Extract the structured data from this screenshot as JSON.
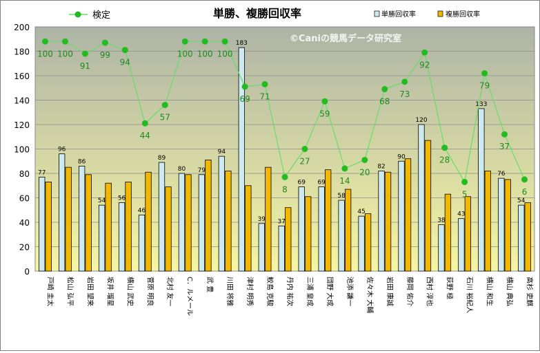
{
  "chart_data": {
    "type": "bar",
    "title": "単勝、複勝回収率",
    "watermark": "©Caniの競馬データ研究室",
    "ylim": [
      0,
      200
    ],
    "yticks": [
      0,
      20,
      40,
      60,
      80,
      100,
      120,
      140,
      160,
      180,
      200
    ],
    "legend_position": "top",
    "colors": {
      "tansho": "#cfe9f0",
      "fukusho": "#f2b800",
      "line": "#66dd66",
      "marker": "#22bb22",
      "plot_top": "#aeb4a6",
      "plot_bottom": "#f6f5a2"
    },
    "categories": [
      "戸崎 圭太",
      "松山 弘平",
      "岩田 望来",
      "坂井 瑠星",
      "横山 武史",
      "菅原 明良",
      "北村 友一",
      "C．ルメール",
      "武 豊",
      "川田 将雅",
      "津村 明秀",
      "鮫島 克駿",
      "丹内 祐次",
      "三浦 皇成",
      "団野 大成",
      "池添 謙一",
      "佐々木 大輔",
      "岩田 康誠",
      "藤岡 佑介",
      "西村 淳也",
      "荻野 極",
      "石川 裕紀人",
      "横山 和生",
      "横山 典弘",
      "高杉 吏麒"
    ],
    "series": [
      {
        "name": "単勝回収率",
        "values": [
          77,
          96,
          86,
          54,
          56,
          46,
          89,
          80,
          79,
          94,
          183,
          39,
          37,
          69,
          69,
          58,
          45,
          82,
          90,
          120,
          38,
          43,
          133,
          76,
          54
        ]
      },
      {
        "name": "複勝回収率",
        "values": [
          73,
          85,
          79,
          72,
          73,
          81,
          69,
          79,
          91,
          82,
          70,
          85,
          52,
          61,
          83,
          67,
          47,
          81,
          92,
          107,
          63,
          61,
          82,
          75,
          56
        ]
      },
      {
        "name": "検定",
        "values": [
          100,
          100,
          91,
          99,
          94,
          44,
          57,
          100,
          100,
          100,
          69,
          71,
          8,
          27,
          59,
          14,
          20,
          68,
          73,
          92,
          28,
          5,
          79,
          37,
          6
        ],
        "plotted_y": [
          188,
          188,
          178,
          187,
          181,
          121,
          136,
          188,
          188,
          188,
          151,
          153,
          77,
          100,
          139,
          84,
          91,
          149,
          155,
          179,
          101,
          73,
          162,
          112,
          75
        ]
      }
    ]
  }
}
